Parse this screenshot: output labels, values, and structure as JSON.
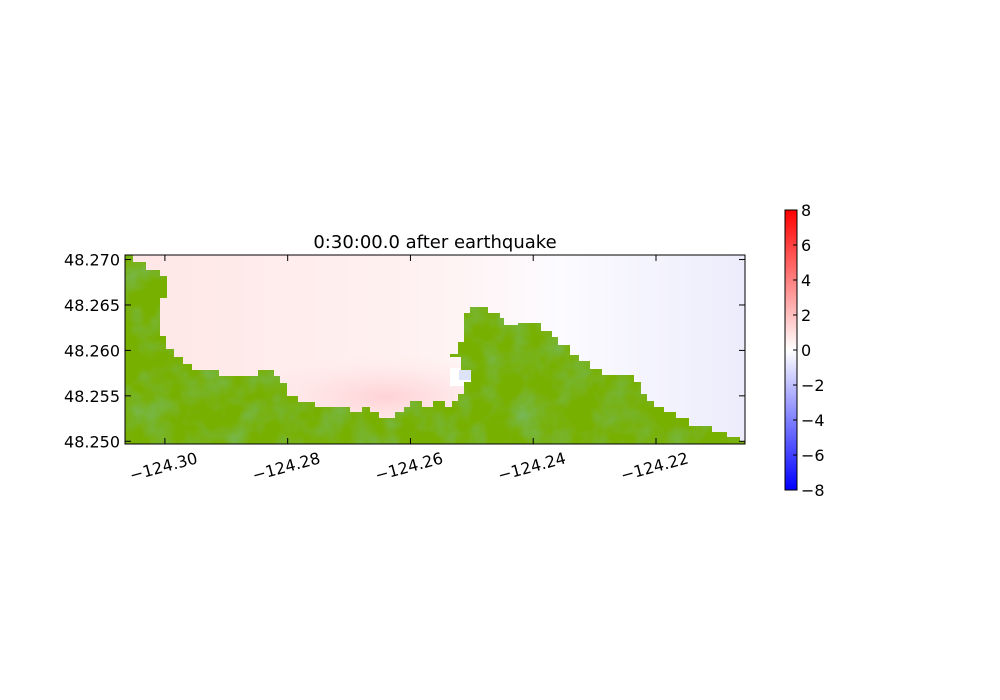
{
  "chart_data": {
    "type": "heatmap",
    "title": "0:30:00.0 after earthquake",
    "xlabel": "",
    "ylabel": "",
    "xlim": [
      -124.3065,
      -124.2055
    ],
    "ylim": [
      48.2497,
      48.2705
    ],
    "xticks": [
      -124.3,
      -124.28,
      -124.26,
      -124.24,
      -124.22
    ],
    "xtick_labels": [
      "−124.30",
      "−124.28",
      "−124.26",
      "−124.24",
      "−124.22"
    ],
    "yticks": [
      48.25,
      48.255,
      48.26,
      48.265,
      48.27
    ],
    "ytick_labels": [
      "48.250",
      "48.255",
      "48.260",
      "48.265",
      "48.270"
    ],
    "colorbar": {
      "range": [
        -8,
        8
      ],
      "ticks": [
        8,
        6,
        4,
        2,
        0,
        -2,
        -4,
        -6,
        -8
      ],
      "tick_labels": [
        "8",
        "6",
        "4",
        "2",
        "0",
        "−2",
        "−4",
        "−6",
        "−8"
      ],
      "colormap": "blue-white-red"
    },
    "surface_values": {
      "west": 0.7,
      "center_peak": 1.1,
      "east": -0.6
    },
    "land_colors": {
      "low": "#78b000",
      "high": "#2f7d2a"
    },
    "grid": false
  }
}
